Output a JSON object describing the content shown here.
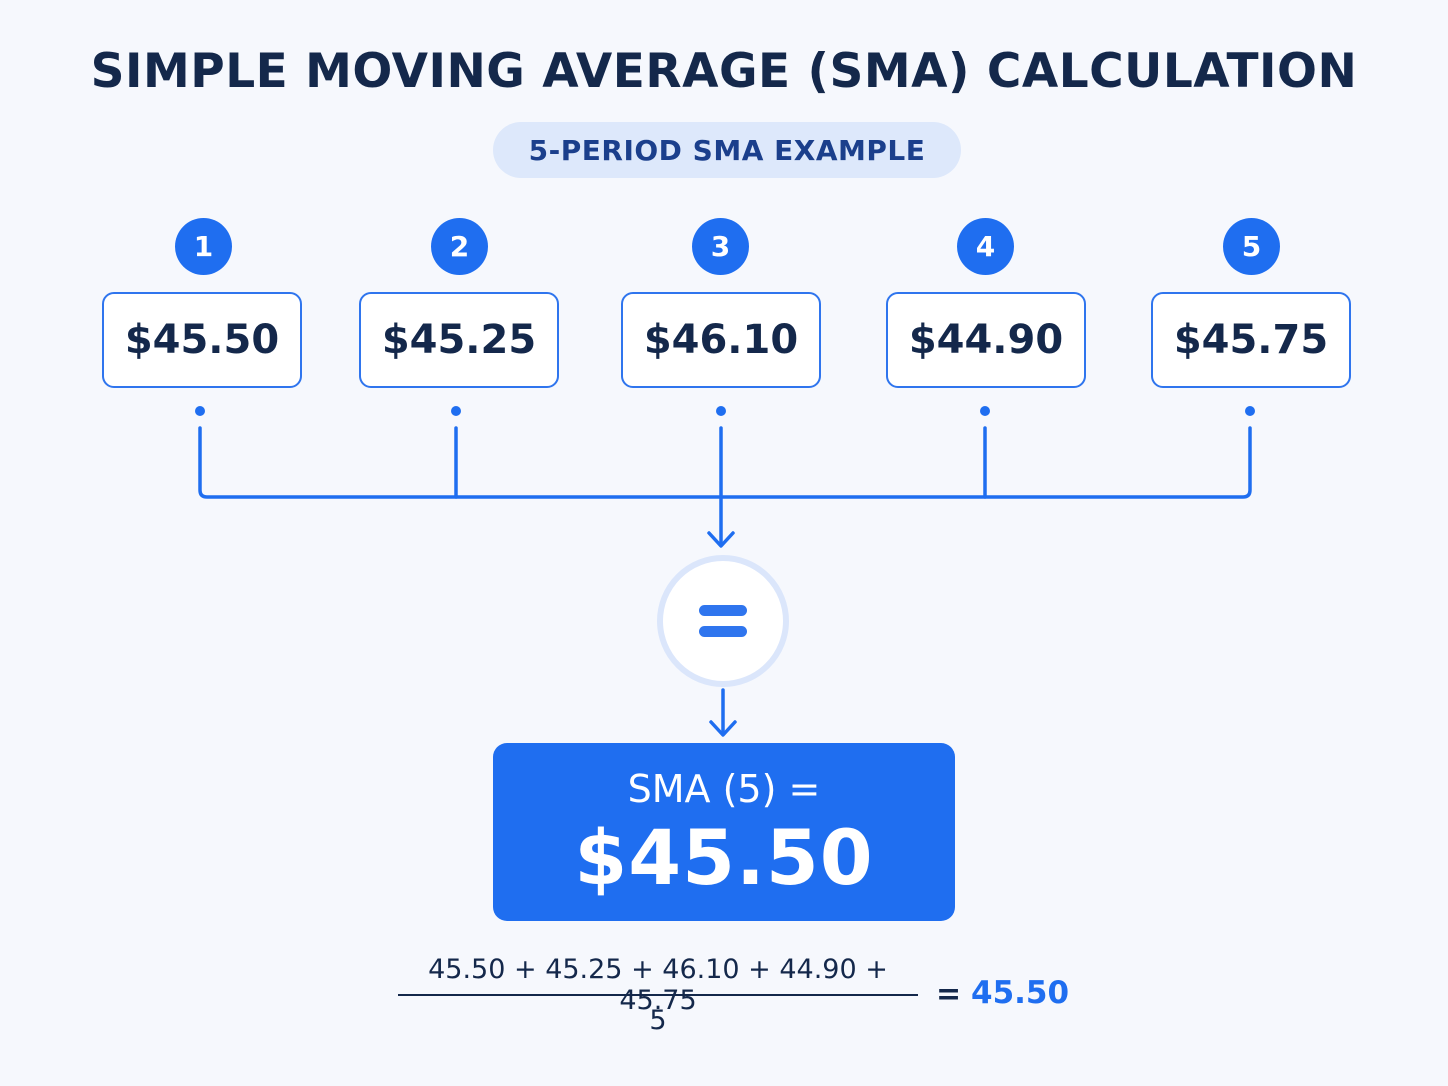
{
  "title": "SIMPLE MOVING AVERAGE (SMA) CALCULATION",
  "subtitle": "5-PERIOD SMA EXAMPLE",
  "periods": [
    {
      "number": "1",
      "price": "$45.50"
    },
    {
      "number": "2",
      "price": "$45.25"
    },
    {
      "number": "3",
      "price": "$46.10"
    },
    {
      "number": "4",
      "price": "$44.90"
    },
    {
      "number": "5",
      "price": "$45.75"
    }
  ],
  "result": {
    "label": "SMA (5) =",
    "value": "$45.50"
  },
  "formula": {
    "numerator": "45.50 + 45.25 + 46.10 + 44.90 + 45.75",
    "denominator": "5",
    "equals": "=",
    "result": "45.50"
  },
  "colors": {
    "accent": "#1f6ef0",
    "title": "#14284b",
    "pill": "#dde8fb",
    "background": "#f6f8fd"
  }
}
